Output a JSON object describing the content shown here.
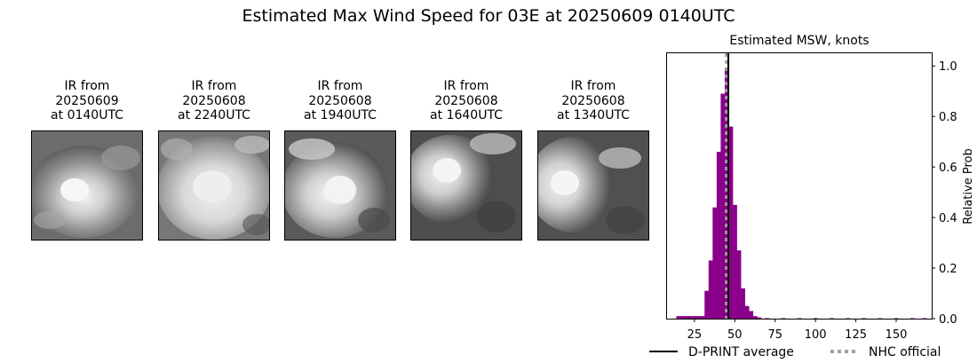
{
  "suptitle": "Estimated Max Wind Speed for 03E at 20250609 0140UTC",
  "panels": [
    {
      "line1": "IR from",
      "line2": "20250609",
      "line3": "at 0140UTC"
    },
    {
      "line1": "IR from",
      "line2": "20250608",
      "line3": "at 2240UTC"
    },
    {
      "line1": "IR from",
      "line2": "20250608",
      "line3": "at 1940UTC"
    },
    {
      "line1": "IR from",
      "line2": "20250608",
      "line3": "at 1640UTC"
    },
    {
      "line1": "IR from",
      "line2": "20250608",
      "line3": "at 1340UTC"
    }
  ],
  "chart_data": {
    "type": "bar",
    "title": "Estimated MSW, knots",
    "xlabel": "",
    "ylabel": "Relative Prob",
    "xlim": [
      8,
      172
    ],
    "ylim": [
      0,
      1.05
    ],
    "xticks": [
      25,
      50,
      75,
      100,
      125,
      150
    ],
    "yticks": [
      0.0,
      0.2,
      0.4,
      0.6,
      0.8,
      1.0
    ],
    "ytick_labels": [
      "0.0",
      "0.2",
      "0.4",
      "0.6",
      "0.8",
      "1.0"
    ],
    "y_axis_side": "right",
    "bin_width": 2.5,
    "bar_color": "#8b008b",
    "bins": [
      {
        "x": 15,
        "y": 0.01
      },
      {
        "x": 17.5,
        "y": 0.01
      },
      {
        "x": 20,
        "y": 0.01
      },
      {
        "x": 22.5,
        "y": 0.01
      },
      {
        "x": 25,
        "y": 0.01
      },
      {
        "x": 27.5,
        "y": 0.01
      },
      {
        "x": 30,
        "y": 0.01
      },
      {
        "x": 32.5,
        "y": 0.11
      },
      {
        "x": 35,
        "y": 0.23
      },
      {
        "x": 37.5,
        "y": 0.44
      },
      {
        "x": 40,
        "y": 0.66
      },
      {
        "x": 42.5,
        "y": 0.89
      },
      {
        "x": 45,
        "y": 0.99
      },
      {
        "x": 47.5,
        "y": 0.76
      },
      {
        "x": 50,
        "y": 0.45
      },
      {
        "x": 52.5,
        "y": 0.27
      },
      {
        "x": 55,
        "y": 0.12
      },
      {
        "x": 57.5,
        "y": 0.05
      },
      {
        "x": 60,
        "y": 0.03
      },
      {
        "x": 62.5,
        "y": 0.01
      },
      {
        "x": 65,
        "y": 0.005
      },
      {
        "x": 70,
        "y": 0.002
      },
      {
        "x": 80,
        "y": 0.002
      },
      {
        "x": 90,
        "y": 0.002
      },
      {
        "x": 100,
        "y": 0.002
      },
      {
        "x": 110,
        "y": 0.002
      },
      {
        "x": 120,
        "y": 0.002
      },
      {
        "x": 130,
        "y": 0.002
      },
      {
        "x": 140,
        "y": 0.002
      },
      {
        "x": 150,
        "y": 0.002
      },
      {
        "x": 160,
        "y": 0.002
      },
      {
        "x": 167.5,
        "y": 0.002
      }
    ],
    "dprint_average": 46,
    "nhc_official": 45,
    "legend": [
      {
        "label": "D-PRINT average",
        "color": "#000000",
        "style": "solid"
      },
      {
        "label": "NHC official",
        "color": "#a0a0a0",
        "style": "dotted"
      }
    ],
    "legend_position": "bottom"
  }
}
